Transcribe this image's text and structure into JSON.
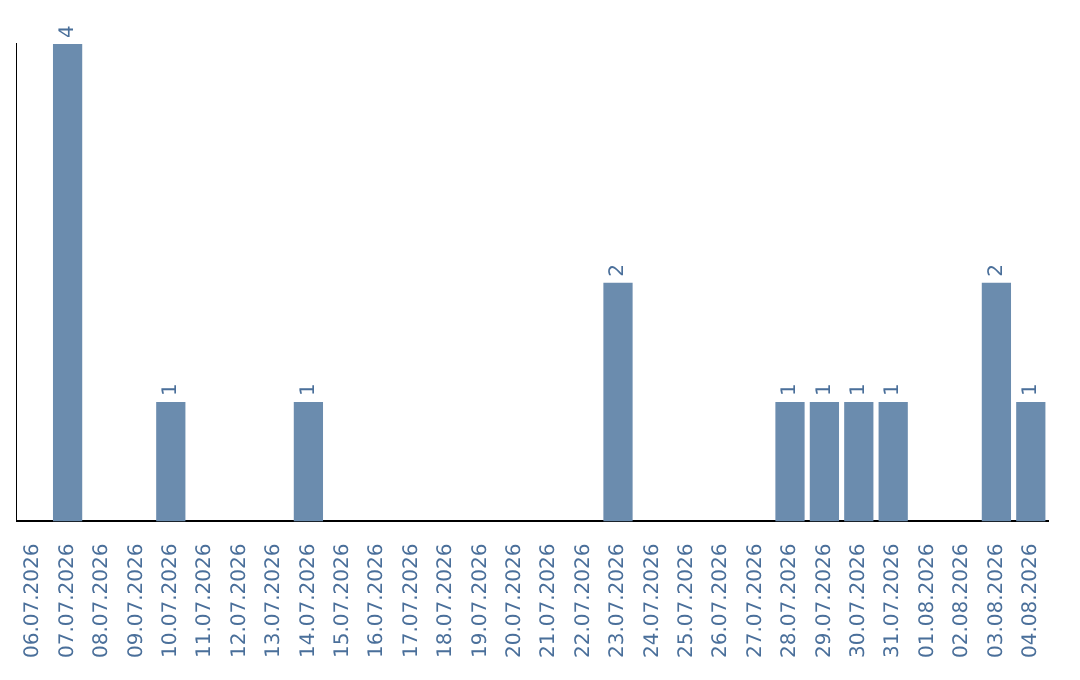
{
  "chart_data": {
    "type": "bar",
    "categories": [
      "06.07.2026",
      "07.07.2026",
      "08.07.2026",
      "09.07.2026",
      "10.07.2026",
      "11.07.2026",
      "12.07.2026",
      "13.07.2026",
      "14.07.2026",
      "15.07.2026",
      "16.07.2026",
      "17.07.2026",
      "18.07.2026",
      "19.07.2026",
      "20.07.2026",
      "21.07.2026",
      "22.07.2026",
      "23.07.2026",
      "24.07.2026",
      "25.07.2026",
      "26.07.2026",
      "27.07.2026",
      "28.07.2026",
      "29.07.2026",
      "30.07.2026",
      "31.07.2026",
      "01.08.2026",
      "02.08.2026",
      "03.08.2026",
      "04.08.2026"
    ],
    "values": [
      0,
      4,
      0,
      0,
      1,
      0,
      0,
      0,
      1,
      0,
      0,
      0,
      0,
      0,
      0,
      0,
      0,
      2,
      0,
      0,
      0,
      0,
      1,
      1,
      1,
      1,
      0,
      0,
      2,
      1
    ],
    "value_labels": [
      null,
      "4",
      null,
      null,
      "1",
      null,
      null,
      null,
      "1",
      null,
      null,
      null,
      null,
      null,
      null,
      null,
      null,
      "2",
      null,
      null,
      null,
      null,
      "1",
      "1",
      "1",
      "1",
      null,
      null,
      "2",
      "1"
    ],
    "color": "#6b8cae",
    "grid": false,
    "legend": false,
    "tick_labels": "x"
  }
}
